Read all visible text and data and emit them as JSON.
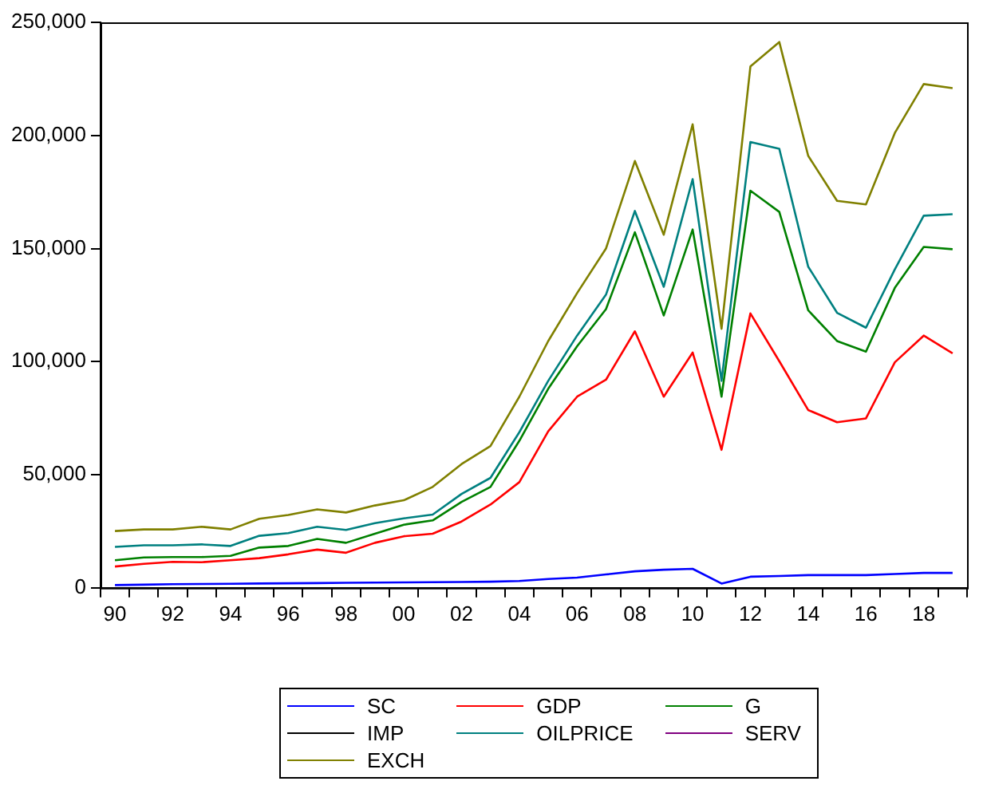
{
  "chart_data": {
    "type": "line",
    "categories": [
      "90",
      null,
      "92",
      null,
      "94",
      null,
      "96",
      null,
      "98",
      null,
      "00",
      null,
      "02",
      null,
      "04",
      null,
      "06",
      null,
      "08",
      null,
      "10",
      null,
      "12",
      null,
      "14",
      null,
      "16",
      null,
      "18",
      null
    ],
    "ylim": [
      0,
      250000
    ],
    "yticks": [
      {
        "value": 0,
        "label": "0"
      },
      {
        "value": 50000,
        "label": "50,000"
      },
      {
        "value": 100000,
        "label": "100,000"
      },
      {
        "value": 150000,
        "label": "150,000"
      },
      {
        "value": 200000,
        "label": "200,000"
      },
      {
        "value": 250000,
        "label": "250,000"
      }
    ],
    "grid": false,
    "legend": "bottom",
    "marker": "none",
    "line_style": "solid",
    "series": [
      {
        "name": "SC",
        "color": "#0000ff",
        "values": [
          1200,
          1400,
          1600,
          1700,
          1800,
          1900,
          2000,
          2100,
          2200,
          2300,
          2400,
          2500,
          2600,
          2700,
          3000,
          3900,
          4500,
          5900,
          7300,
          8000,
          8400,
          1900,
          4900,
          5200,
          5600,
          5600,
          5600,
          6100,
          6600,
          6600
        ]
      },
      {
        "name": "GDP",
        "color": "#ff0000",
        "values": [
          9400,
          10600,
          11500,
          11300,
          12200,
          13100,
          14800,
          16900,
          15500,
          19900,
          22800,
          23900,
          29300,
          36800,
          46700,
          69200,
          84500,
          92000,
          113400,
          84500,
          104000,
          61000,
          121300,
          100200,
          78600,
          73200,
          74900,
          99700,
          111500,
          103700
        ]
      },
      {
        "name": "G",
        "color": "#008000",
        "values": [
          12200,
          13400,
          13600,
          13600,
          14100,
          17800,
          18500,
          21600,
          19900,
          23900,
          27900,
          29800,
          38000,
          44600,
          65000,
          88000,
          106800,
          123200,
          157200,
          120400,
          158400,
          84500,
          175600,
          166200,
          122700,
          109100,
          104400,
          132600,
          150700,
          149700
        ]
      },
      {
        "name": "IMP",
        "color": "#000000",
        "values": [
          null,
          null,
          null,
          null,
          null,
          null,
          null,
          null,
          null,
          null,
          null,
          null,
          null,
          null,
          null,
          null,
          null,
          null,
          null,
          null,
          null,
          null,
          null,
          null,
          null,
          null,
          null,
          null,
          null,
          null
        ]
      },
      {
        "name": "OILPRICE",
        "color": "#008080",
        "values": [
          18100,
          18800,
          18800,
          19200,
          18500,
          23000,
          24200,
          27000,
          25600,
          28600,
          30700,
          32400,
          41500,
          48600,
          68800,
          91500,
          111500,
          129600,
          166600,
          133100,
          180700,
          91500,
          197100,
          194100,
          142000,
          121600,
          115000,
          140800,
          164500,
          165200
        ]
      },
      {
        "name": "SERV",
        "color": "#800080",
        "values": [
          null,
          null,
          null,
          null,
          null,
          null,
          null,
          null,
          null,
          null,
          null,
          null,
          null,
          null,
          null,
          null,
          null,
          null,
          null,
          null,
          null,
          null,
          null,
          null,
          null,
          null,
          null,
          null,
          null,
          null
        ]
      },
      {
        "name": "EXCH",
        "color": "#808000",
        "values": [
          25100,
          25800,
          25800,
          27000,
          25800,
          30500,
          32200,
          34700,
          33300,
          36400,
          38700,
          44600,
          54700,
          62700,
          84500,
          109100,
          130300,
          150000,
          188700,
          156100,
          204900,
          114500,
          230500,
          241300,
          191000,
          171100,
          169500,
          201100,
          222700,
          220900
        ]
      }
    ]
  }
}
